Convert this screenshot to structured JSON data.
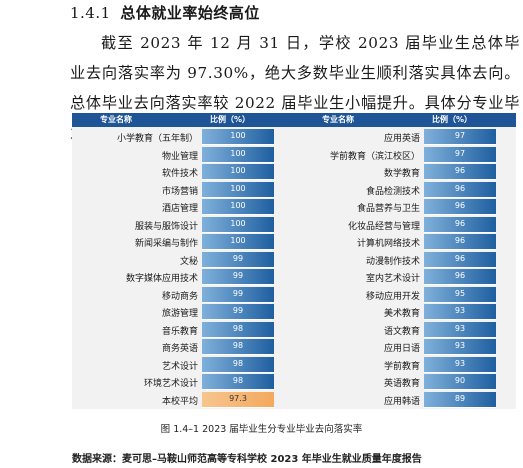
{
  "heading": {
    "number": "1.4.1",
    "title": "总体就业率始终高位"
  },
  "paragraph": "截至 2023 年 12 月 31 日，学校 2023 届毕业生总体毕业去向落实率为 97.30%，绝大多数毕业生顺利落实具体去向。总体毕业去向落实率较 2022 届毕业生小幅提升。具体分专业毕业去向落实率见下图。",
  "table": {
    "header_name": "专业名称",
    "header_ratio": "比例（%）",
    "left": [
      {
        "name": "小学教育（五年制）",
        "value": "100"
      },
      {
        "name": "物业管理",
        "value": "100"
      },
      {
        "name": "软件技术",
        "value": "100"
      },
      {
        "name": "市场营销",
        "value": "100"
      },
      {
        "name": "酒店管理",
        "value": "100"
      },
      {
        "name": "服装与服饰设计",
        "value": "100"
      },
      {
        "name": "新闻采编与制作",
        "value": "100"
      },
      {
        "name": "文秘",
        "value": "99"
      },
      {
        "name": "数字媒体应用技术",
        "value": "99"
      },
      {
        "name": "移动商务",
        "value": "99"
      },
      {
        "name": "旅游管理",
        "value": "99"
      },
      {
        "name": "音乐教育",
        "value": "98"
      },
      {
        "name": "商务英语",
        "value": "98"
      },
      {
        "name": "艺术设计",
        "value": "98"
      },
      {
        "name": "环境艺术设计",
        "value": "98"
      },
      {
        "name": "本校平均",
        "value": "97.3",
        "average": true
      }
    ],
    "right": [
      {
        "name": "应用英语",
        "value": "97"
      },
      {
        "name": "学前教育（滨江校区）",
        "value": "97"
      },
      {
        "name": "数学教育",
        "value": "96"
      },
      {
        "name": "食品检测技术",
        "value": "96"
      },
      {
        "name": "食品营养与卫生",
        "value": "96"
      },
      {
        "name": "化妆品经营与管理",
        "value": "96"
      },
      {
        "name": "计算机网络技术",
        "value": "96"
      },
      {
        "name": "动漫制作技术",
        "value": "96"
      },
      {
        "name": "室内艺术设计",
        "value": "96"
      },
      {
        "name": "移动应用开发",
        "value": "95"
      },
      {
        "name": "美术教育",
        "value": "93"
      },
      {
        "name": "语文教育",
        "value": "93"
      },
      {
        "name": "应用日语",
        "value": "93"
      },
      {
        "name": "学前教育",
        "value": "93"
      },
      {
        "name": "英语教育",
        "value": "90"
      },
      {
        "name": "应用韩语",
        "value": "89"
      }
    ]
  },
  "caption": "图 1.4–1 2023 届毕业生分专业毕业去向落实率",
  "source": "数据来源：麦可思–马鞍山师范高等专科学校 2023 年毕业生就业质量年度报告"
}
